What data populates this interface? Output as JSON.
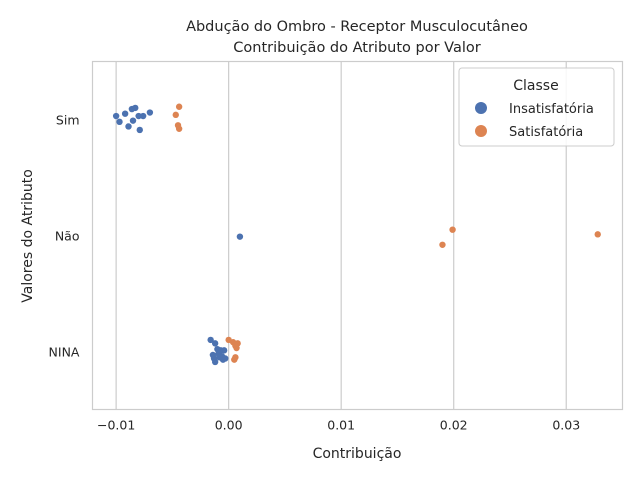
{
  "chart_data": {
    "type": "scatter",
    "title_line1": "Abdução do Ombro - Receptor Musculocutâneo",
    "title_line2": "Contribuição do Atributo por Valor",
    "xlabel": "Contribuição",
    "ylabel": "Valores do Atributo",
    "xlim": [
      -0.0121,
      0.035
    ],
    "xticks": [
      -0.01,
      0.0,
      0.01,
      0.02,
      0.03
    ],
    "xtick_labels": [
      "−0.01",
      "0.00",
      "0.01",
      "0.02",
      "0.03"
    ],
    "categories": [
      "Sim",
      "Não",
      "NINA"
    ],
    "grid": "vertical",
    "legend": {
      "title": "Classe",
      "placement": "top-right",
      "entries": [
        "Insatisfatória",
        "Satisfatória"
      ]
    },
    "colors": {
      "Insatisfatória": "#4c72b0",
      "Satisfatória": "#dd8452"
    },
    "series": [
      {
        "name": "Insatisfatória",
        "points": [
          {
            "category": "Sim",
            "x": -0.01,
            "jitter": 0.03
          },
          {
            "category": "Sim",
            "x": -0.0097,
            "jitter": -0.02
          },
          {
            "category": "Sim",
            "x": -0.0092,
            "jitter": 0.05
          },
          {
            "category": "Sim",
            "x": -0.0089,
            "jitter": -0.06
          },
          {
            "category": "Sim",
            "x": -0.0086,
            "jitter": 0.09
          },
          {
            "category": "Sim",
            "x": -0.0085,
            "jitter": -0.01
          },
          {
            "category": "Sim",
            "x": -0.0083,
            "jitter": 0.1
          },
          {
            "category": "Sim",
            "x": -0.008,
            "jitter": 0.03
          },
          {
            "category": "Sim",
            "x": -0.0079,
            "jitter": -0.09
          },
          {
            "category": "Sim",
            "x": -0.0076,
            "jitter": 0.03
          },
          {
            "category": "Sim",
            "x": -0.007,
            "jitter": 0.06
          },
          {
            "category": "Não",
            "x": 0.001,
            "jitter": -0.01
          },
          {
            "category": "NINA",
            "x": -0.0016,
            "jitter": 0.1
          },
          {
            "category": "NINA",
            "x": -0.0012,
            "jitter": 0.07
          },
          {
            "category": "NINA",
            "x": -0.0014,
            "jitter": -0.03
          },
          {
            "category": "NINA",
            "x": -0.0013,
            "jitter": -0.06
          },
          {
            "category": "NINA",
            "x": -0.0012,
            "jitter": -0.09
          },
          {
            "category": "NINA",
            "x": -0.001,
            "jitter": 0.02
          },
          {
            "category": "NINA",
            "x": -0.0009,
            "jitter": -0.02
          },
          {
            "category": "NINA",
            "x": -0.0008,
            "jitter": -0.05
          },
          {
            "category": "NINA",
            "x": -0.0007,
            "jitter": 0.01
          },
          {
            "category": "NINA",
            "x": -0.0006,
            "jitter": -0.04
          },
          {
            "category": "NINA",
            "x": -0.0005,
            "jitter": -0.07
          },
          {
            "category": "NINA",
            "x": -0.0004,
            "jitter": 0.01
          },
          {
            "category": "NINA",
            "x": -0.0003,
            "jitter": -0.06
          }
        ]
      },
      {
        "name": "Satisfatória",
        "points": [
          {
            "category": "Sim",
            "x": -0.0047,
            "jitter": 0.04
          },
          {
            "category": "Sim",
            "x": -0.0044,
            "jitter": 0.11
          },
          {
            "category": "Sim",
            "x": -0.0045,
            "jitter": -0.05
          },
          {
            "category": "Sim",
            "x": -0.0044,
            "jitter": -0.08
          },
          {
            "category": "Não",
            "x": 0.0199,
            "jitter": 0.05
          },
          {
            "category": "Não",
            "x": 0.019,
            "jitter": -0.08
          },
          {
            "category": "Não",
            "x": 0.0328,
            "jitter": 0.01
          },
          {
            "category": "NINA",
            "x": 0.0,
            "jitter": 0.1
          },
          {
            "category": "NINA",
            "x": 0.0004,
            "jitter": 0.08
          },
          {
            "category": "NINA",
            "x": 0.0008,
            "jitter": 0.07
          },
          {
            "category": "NINA",
            "x": 0.0006,
            "jitter": 0.05
          },
          {
            "category": "NINA",
            "x": 0.0007,
            "jitter": 0.03
          },
          {
            "category": "NINA",
            "x": 0.0006,
            "jitter": -0.05
          },
          {
            "category": "NINA",
            "x": 0.0005,
            "jitter": -0.07
          }
        ]
      }
    ]
  }
}
